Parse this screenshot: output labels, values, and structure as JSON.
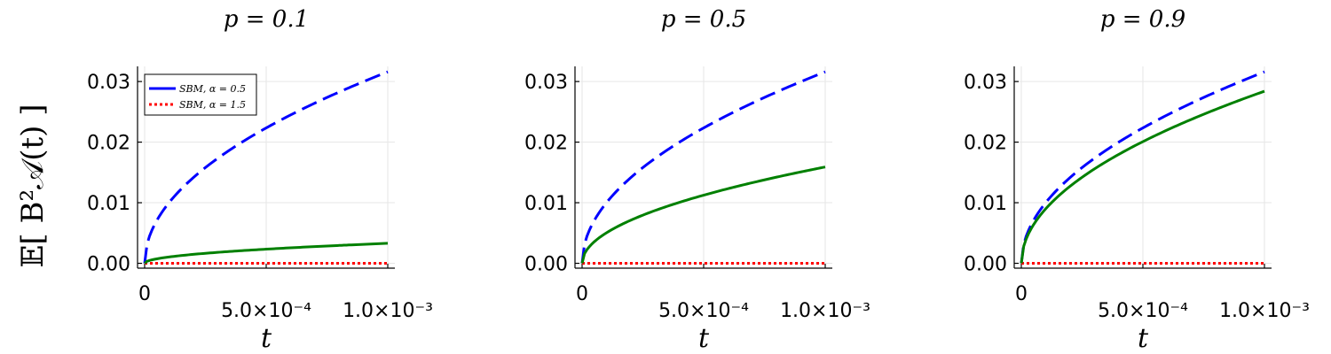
{
  "ylabel": "𝔼[ B²𝒜(t) ]",
  "legend": {
    "entries": [
      {
        "label": "SBM, α = 0.5",
        "color": "#0000ff",
        "style": "solid"
      },
      {
        "label": "SBM, α = 1.5",
        "color": "#ff0000",
        "style": "dotted"
      }
    ]
  },
  "chart_data": [
    {
      "type": "line",
      "title": "p = 0.1",
      "xlabel": "t",
      "xlim": [
        0,
        0.001
      ],
      "ylim": [
        -0.0008,
        0.0325
      ],
      "x_ticks": [
        "0",
        "5.0×10⁻⁴",
        "1.0×10⁻³"
      ],
      "y_ticks": [
        "0.00",
        "0.01",
        "0.02",
        "0.03"
      ],
      "series": [
        {
          "name": "SBM, α = 0.5",
          "color": "#0000ff",
          "dash": "dashed",
          "x": [
            0,
            0.0001,
            0.0002,
            0.0003,
            0.0004,
            0.0005,
            0.0006,
            0.0007,
            0.0008,
            0.0009,
            0.001
          ],
          "y": [
            0,
            0.01,
            0.0141,
            0.0173,
            0.02,
            0.0224,
            0.0245,
            0.0265,
            0.0283,
            0.03,
            0.0316
          ]
        },
        {
          "name": "SBM, α = 1.5",
          "color": "#ff0000",
          "dash": "dotted",
          "x": [
            0,
            0.0005,
            0.001
          ],
          "y": [
            0,
            0.0,
            0.0
          ]
        },
        {
          "color": "#008000",
          "dash": "solid",
          "x": [
            0,
            0.0001,
            0.0002,
            0.0003,
            0.0004,
            0.0005,
            0.0006,
            0.0007,
            0.0008,
            0.0009,
            0.001
          ],
          "y": [
            0,
            0.00104,
            0.00147,
            0.0018,
            0.00208,
            0.00233,
            0.00255,
            0.00276,
            0.00295,
            0.00313,
            0.0033
          ]
        }
      ]
    },
    {
      "type": "line",
      "title": "p = 0.5",
      "xlabel": "t",
      "xlim": [
        0,
        0.001
      ],
      "ylim": [
        -0.0008,
        0.0325
      ],
      "x_ticks": [
        "0",
        "5.0×10⁻⁴",
        "1.0×10⁻³"
      ],
      "y_ticks": [
        "0.00",
        "0.01",
        "0.02",
        "0.03"
      ],
      "series": [
        {
          "color": "#0000ff",
          "dash": "dashed",
          "x": [
            0,
            0.0001,
            0.0002,
            0.0003,
            0.0004,
            0.0005,
            0.0006,
            0.0007,
            0.0008,
            0.0009,
            0.001
          ],
          "y": [
            0,
            0.01,
            0.0141,
            0.0173,
            0.02,
            0.0224,
            0.0245,
            0.0265,
            0.0283,
            0.03,
            0.0316
          ]
        },
        {
          "color": "#ff0000",
          "dash": "dotted",
          "x": [
            0,
            0.0005,
            0.001
          ],
          "y": [
            0,
            0.0,
            0.0
          ]
        },
        {
          "color": "#008000",
          "dash": "solid",
          "x": [
            0,
            0.0001,
            0.0002,
            0.0003,
            0.0004,
            0.0005,
            0.0006,
            0.0007,
            0.0008,
            0.0009,
            0.001
          ],
          "y": [
            0,
            0.00503,
            0.00711,
            0.00871,
            0.01006,
            0.01125,
            0.01232,
            0.01331,
            0.01423,
            0.01509,
            0.0159
          ]
        }
      ]
    },
    {
      "type": "line",
      "title": "p = 0.9",
      "xlabel": "t",
      "xlim": [
        0,
        0.001
      ],
      "ylim": [
        -0.0008,
        0.0325
      ],
      "x_ticks": [
        "0",
        "5.0×10⁻⁴",
        "1.0×10⁻³"
      ],
      "y_ticks": [
        "0.00",
        "0.01",
        "0.02",
        "0.03"
      ],
      "series": [
        {
          "color": "#0000ff",
          "dash": "dashed",
          "x": [
            0,
            0.0001,
            0.0002,
            0.0003,
            0.0004,
            0.0005,
            0.0006,
            0.0007,
            0.0008,
            0.0009,
            0.001
          ],
          "y": [
            0,
            0.01,
            0.0141,
            0.0173,
            0.02,
            0.0224,
            0.0245,
            0.0265,
            0.0283,
            0.03,
            0.0316
          ]
        },
        {
          "color": "#ff0000",
          "dash": "dotted",
          "x": [
            0,
            0.0005,
            0.001
          ],
          "y": [
            0,
            0.0,
            0.0
          ]
        },
        {
          "color": "#008000",
          "dash": "solid",
          "x": [
            0,
            0.0001,
            0.0002,
            0.0003,
            0.0004,
            0.0005,
            0.0006,
            0.0007,
            0.0008,
            0.0009,
            0.001
          ],
          "y": [
            0,
            0.00899,
            0.01271,
            0.01557,
            0.01798,
            0.0201,
            0.02202,
            0.02378,
            0.02543,
            0.02697,
            0.0284
          ]
        }
      ]
    }
  ]
}
